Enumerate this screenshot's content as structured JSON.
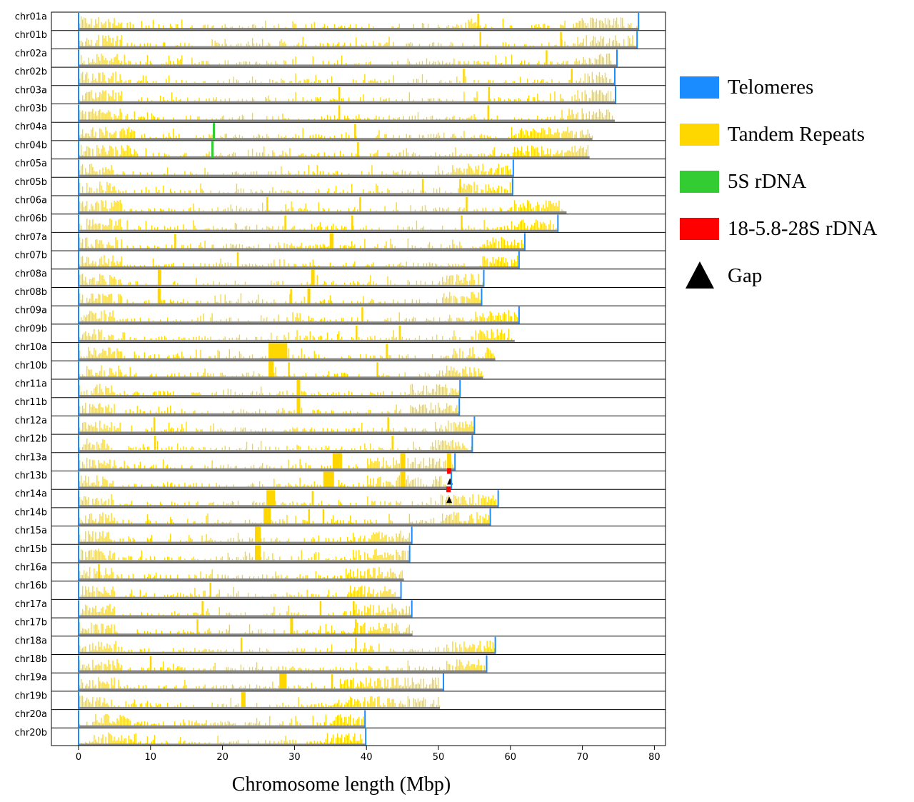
{
  "chart_data": {
    "type": "chromosome-ideogram",
    "xlabel": "Chromosome length (Mbp)",
    "xlim": [
      -3.8,
      81.5
    ],
    "xticks": [
      0,
      10,
      20,
      30,
      40,
      50,
      60,
      70,
      80
    ],
    "grid": false,
    "legend_position": "right",
    "legend": [
      {
        "label": "Telomeres",
        "color": "#1a8cff",
        "shape": "square"
      },
      {
        "label": "Tandem Repeats",
        "color": "#ffd700",
        "shape": "square"
      },
      {
        "label": "5S rDNA",
        "color": "#33cc33",
        "shape": "square"
      },
      {
        "label": "18-5.8-28S rDNA",
        "color": "#ff0000",
        "shape": "square"
      },
      {
        "label": "Gap",
        "color": "#000000",
        "shape": "triangle"
      }
    ],
    "colors": {
      "telomere": "#1a8cff",
      "tandem": "#ffd700",
      "rdna5s": "#33cc33",
      "rdna45s": "#ff0000",
      "gap": "#000000",
      "axis_line": "#888888"
    },
    "chromosomes": [
      {
        "name": "chr01a",
        "length": 77.8,
        "arm_peaks": [
          [
            0,
            6
          ],
          [
            54,
            55.5
          ],
          [
            69,
            77
          ]
        ],
        "spikes": [
          55.5
        ],
        "telomeres": [
          0,
          77.8
        ]
      },
      {
        "name": "chr01b",
        "length": 77.6,
        "arm_peaks": [
          [
            0,
            6
          ],
          [
            69,
            77
          ]
        ],
        "spikes": [
          55.8,
          67.0
        ],
        "telomeres": [
          0,
          77.6
        ]
      },
      {
        "name": "chr02a",
        "length": 74.8,
        "arm_peaks": [
          [
            0,
            6
          ],
          [
            69,
            74
          ]
        ],
        "spikes": [
          65.0
        ],
        "telomeres": [
          0,
          74.8
        ]
      },
      {
        "name": "chr02b",
        "length": 74.5,
        "arm_peaks": [
          [
            0,
            6
          ],
          [
            69,
            74
          ]
        ],
        "spikes": [
          53.5,
          68.5
        ],
        "telomeres": [
          0,
          74.5
        ]
      },
      {
        "name": "chr03a",
        "length": 74.6,
        "arm_peaks": [
          [
            0,
            6
          ],
          [
            68,
            74
          ]
        ],
        "spikes": [
          36.2,
          57.0
        ],
        "telomeres": [
          0,
          74.6
        ]
      },
      {
        "name": "chr03b",
        "length": 74.5,
        "arm_peaks": [
          [
            0,
            6
          ],
          [
            68,
            74
          ]
        ],
        "spikes": [
          36.2,
          56.9
        ],
        "telomeres": [
          0
        ]
      },
      {
        "name": "chr04a",
        "length": 71.4,
        "arm_peaks": [
          [
            0,
            8
          ],
          [
            60,
            71
          ]
        ],
        "spikes": [
          38.4
        ],
        "rdna5s": [
          18.8
        ],
        "telomeres": [
          0
        ]
      },
      {
        "name": "chr04b",
        "length": 71.0,
        "arm_peaks": [
          [
            0,
            8
          ],
          [
            60,
            71
          ]
        ],
        "spikes": [
          38.8
        ],
        "rdna5s": [
          18.6
        ],
        "telomeres": [
          0
        ]
      },
      {
        "name": "chr05a",
        "length": 60.4,
        "arm_peaks": [
          [
            0,
            5
          ],
          [
            52,
            60
          ]
        ],
        "spikes": [],
        "telomeres": [
          0,
          60.4
        ]
      },
      {
        "name": "chr05b",
        "length": 60.3,
        "arm_peaks": [
          [
            0,
            5
          ],
          [
            52,
            60
          ]
        ],
        "spikes": [
          47.8,
          53.0
        ],
        "telomeres": [
          0,
          60.3
        ]
      },
      {
        "name": "chr06a",
        "length": 67.8,
        "arm_peaks": [
          [
            0,
            6
          ],
          [
            60,
            67
          ]
        ],
        "spikes": [
          26.2,
          39.1,
          53.9
        ],
        "telomeres": [
          0
        ]
      },
      {
        "name": "chr06b",
        "length": 66.6,
        "arm_peaks": [
          [
            0,
            6
          ],
          [
            60,
            66
          ]
        ],
        "spikes": [
          28.7,
          38.0,
          53.2
        ],
        "telomeres": [
          0,
          66.6
        ]
      },
      {
        "name": "chr07a",
        "length": 62.0,
        "arm_peaks": [
          [
            0,
            6
          ],
          [
            56,
            62
          ]
        ],
        "spikes": [
          13.4,
          35.0
        ],
        "block": [
          [
            34.9,
            35.4
          ]
        ],
        "telomeres": [
          0,
          62.0
        ]
      },
      {
        "name": "chr07b",
        "length": 61.2,
        "arm_peaks": [
          [
            0,
            6
          ],
          [
            56,
            61
          ]
        ],
        "spikes": [
          22.1
        ],
        "telomeres": [
          0,
          61.2
        ]
      },
      {
        "name": "chr08a",
        "length": 56.3,
        "arm_peaks": [
          [
            0,
            6
          ],
          [
            50,
            56
          ]
        ],
        "spikes": [
          11.2,
          32.5
        ],
        "block": [
          [
            11.0,
            11.5
          ],
          [
            32.3,
            32.8
          ]
        ],
        "telomeres": [
          0,
          56.3
        ]
      },
      {
        "name": "chr08b",
        "length": 56.0,
        "arm_peaks": [
          [
            0,
            6
          ],
          [
            50,
            56
          ]
        ],
        "spikes": [
          11.1,
          29.5,
          32.0
        ],
        "block": [
          [
            11.0,
            11.4
          ],
          [
            31.8,
            32.2
          ]
        ],
        "telomeres": [
          0,
          56.0
        ]
      },
      {
        "name": "chr09a",
        "length": 61.2,
        "arm_peaks": [
          [
            0,
            5
          ],
          [
            55,
            61
          ]
        ],
        "spikes": [
          39.4
        ],
        "telomeres": [
          0,
          61.2
        ]
      },
      {
        "name": "chr09b",
        "length": 60.6,
        "arm_peaks": [
          [
            0,
            5
          ],
          [
            55,
            60
          ]
        ],
        "spikes": [
          38.6,
          44.6
        ],
        "telomeres": [
          0
        ]
      },
      {
        "name": "chr10a",
        "length": 57.9,
        "arm_peaks": [
          [
            1,
            6
          ],
          [
            52,
            58
          ]
        ],
        "spikes": [
          42.8
        ],
        "block": [
          [
            26.4,
            29.0
          ]
        ],
        "telomeres": [
          0
        ]
      },
      {
        "name": "chr10b",
        "length": 56.2,
        "arm_peaks": [
          [
            1,
            6
          ],
          [
            50,
            56
          ]
        ],
        "spikes": [
          29.2,
          41.5
        ],
        "block": [
          [
            26.4,
            27.1
          ]
        ],
        "telomeres": [
          0
        ]
      },
      {
        "name": "chr11a",
        "length": 53.0,
        "arm_peaks": [
          [
            0,
            5
          ],
          [
            46,
            53
          ]
        ],
        "spikes": [],
        "block": [
          [
            30.3,
            30.8
          ]
        ],
        "telomeres": [
          0,
          53.0
        ]
      },
      {
        "name": "chr11b",
        "length": 52.9,
        "arm_peaks": [
          [
            0,
            5
          ],
          [
            46,
            53
          ]
        ],
        "spikes": [],
        "block": [
          [
            30.3,
            30.8
          ]
        ],
        "telomeres": [
          0,
          52.9
        ]
      },
      {
        "name": "chr12a",
        "length": 55.0,
        "arm_peaks": [
          [
            0,
            4
          ],
          [
            49,
            55
          ]
        ],
        "spikes": [
          10.5,
          43.0
        ],
        "telomeres": [
          0,
          55.0
        ]
      },
      {
        "name": "chr12b",
        "length": 54.7,
        "arm_peaks": [
          [
            0,
            4
          ],
          [
            49,
            54
          ]
        ],
        "spikes": [
          10.6,
          43.6
        ],
        "telomeres": [
          0,
          54.7
        ]
      },
      {
        "name": "chr13a",
        "length": 52.3,
        "arm_peaks": [
          [
            0,
            5
          ],
          [
            40,
            52
          ]
        ],
        "spikes": [],
        "block": [
          [
            35.3,
            36.6
          ],
          [
            44.7,
            45.4
          ],
          [
            51.2,
            51.8
          ]
        ],
        "telomeres": [
          0,
          52.3
        ]
      },
      {
        "name": "chr13b",
        "length": 51.8,
        "arm_peaks": [
          [
            0,
            5
          ],
          [
            40,
            51
          ]
        ],
        "spikes": [],
        "block": [
          [
            34.0,
            35.5
          ],
          [
            44.7,
            45.4
          ]
        ],
        "rdna45s": [
          [
            51.2,
            51.8
          ]
        ],
        "gaps": [
          51.6
        ],
        "telomeres": [
          0,
          51.8
        ]
      },
      {
        "name": "chr14a",
        "length": 58.3,
        "arm_peaks": [
          [
            0,
            5
          ],
          [
            50,
            58
          ]
        ],
        "spikes": [
          32.5
        ],
        "block": [
          [
            26.1,
            27.3
          ]
        ],
        "rdna45s": [
          [
            51.1,
            51.7
          ]
        ],
        "gaps": [
          51.5
        ],
        "telomeres": [
          0,
          58.3
        ]
      },
      {
        "name": "chr14b",
        "length": 57.2,
        "arm_peaks": [
          [
            0,
            5
          ],
          [
            50,
            57
          ]
        ],
        "spikes": [
          32.0,
          34.0
        ],
        "block": [
          [
            25.7,
            26.7
          ]
        ],
        "telomeres": [
          0,
          57.2
        ]
      },
      {
        "name": "chr15a",
        "length": 46.3,
        "arm_peaks": [
          [
            0,
            5
          ],
          [
            38,
            46
          ]
        ],
        "spikes": [],
        "block": [
          [
            24.5,
            25.3
          ]
        ],
        "telomeres": [
          0,
          46.3
        ]
      },
      {
        "name": "chr15b",
        "length": 46.0,
        "arm_peaks": [
          [
            0,
            5
          ],
          [
            38,
            46
          ]
        ],
        "spikes": [],
        "block": [
          [
            24.5,
            25.3
          ]
        ],
        "telomeres": [
          0,
          46.0
        ]
      },
      {
        "name": "chr16a",
        "length": 45.2,
        "arm_peaks": [
          [
            0,
            5
          ],
          [
            37,
            45
          ]
        ],
        "spikes": [
          2.8
        ],
        "telomeres": [
          0
        ]
      },
      {
        "name": "chr16b",
        "length": 44.8,
        "arm_peaks": [
          [
            0,
            5
          ],
          [
            37,
            44
          ]
        ],
        "spikes": [
          18.3
        ],
        "telomeres": [
          0,
          44.8
        ]
      },
      {
        "name": "chr17a",
        "length": 46.3,
        "arm_peaks": [
          [
            0,
            5
          ],
          [
            38,
            46
          ]
        ],
        "spikes": [
          17.2,
          33.6,
          38.2
        ],
        "telomeres": [
          0,
          46.3
        ]
      },
      {
        "name": "chr17b",
        "length": 46.4,
        "arm_peaks": [
          [
            0,
            5
          ],
          [
            38,
            46
          ]
        ],
        "spikes": [
          16.5,
          29.6,
          38.5
        ],
        "block": [
          [
            29.4,
            29.8
          ]
        ],
        "telomeres": [
          0
        ]
      },
      {
        "name": "chr18a",
        "length": 57.9,
        "arm_peaks": [
          [
            0,
            6
          ],
          [
            51,
            58
          ]
        ],
        "spikes": [
          22.6,
          38.5
        ],
        "telomeres": [
          0,
          57.9
        ]
      },
      {
        "name": "chr18b",
        "length": 56.7,
        "arm_peaks": [
          [
            0,
            6
          ],
          [
            51,
            56
          ]
        ],
        "spikes": [
          10.0
        ],
        "telomeres": [
          0,
          56.7
        ]
      },
      {
        "name": "chr19a",
        "length": 50.7,
        "arm_peaks": [
          [
            0,
            5
          ],
          [
            36,
            50
          ]
        ],
        "spikes": [
          35.2
        ],
        "block": [
          [
            27.9,
            28.9
          ]
        ],
        "telomeres": [
          0,
          50.7
        ]
      },
      {
        "name": "chr19b",
        "length": 50.2,
        "arm_peaks": [
          [
            0,
            5
          ],
          [
            36,
            50
          ]
        ],
        "spikes": [],
        "block": [
          [
            22.6,
            23.2
          ]
        ],
        "telomeres": [
          0
        ]
      },
      {
        "name": "chr20a",
        "length": 39.8,
        "arm_peaks": [
          [
            2,
            8
          ],
          [
            34,
            39.8
          ]
        ],
        "spikes": [],
        "telomeres": [
          0,
          39.8
        ]
      },
      {
        "name": "chr20b",
        "length": 39.9,
        "arm_peaks": [
          [
            2,
            8
          ],
          [
            34,
            39.9
          ]
        ],
        "spikes": [],
        "telomeres": [
          0,
          39.9
        ]
      }
    ]
  }
}
